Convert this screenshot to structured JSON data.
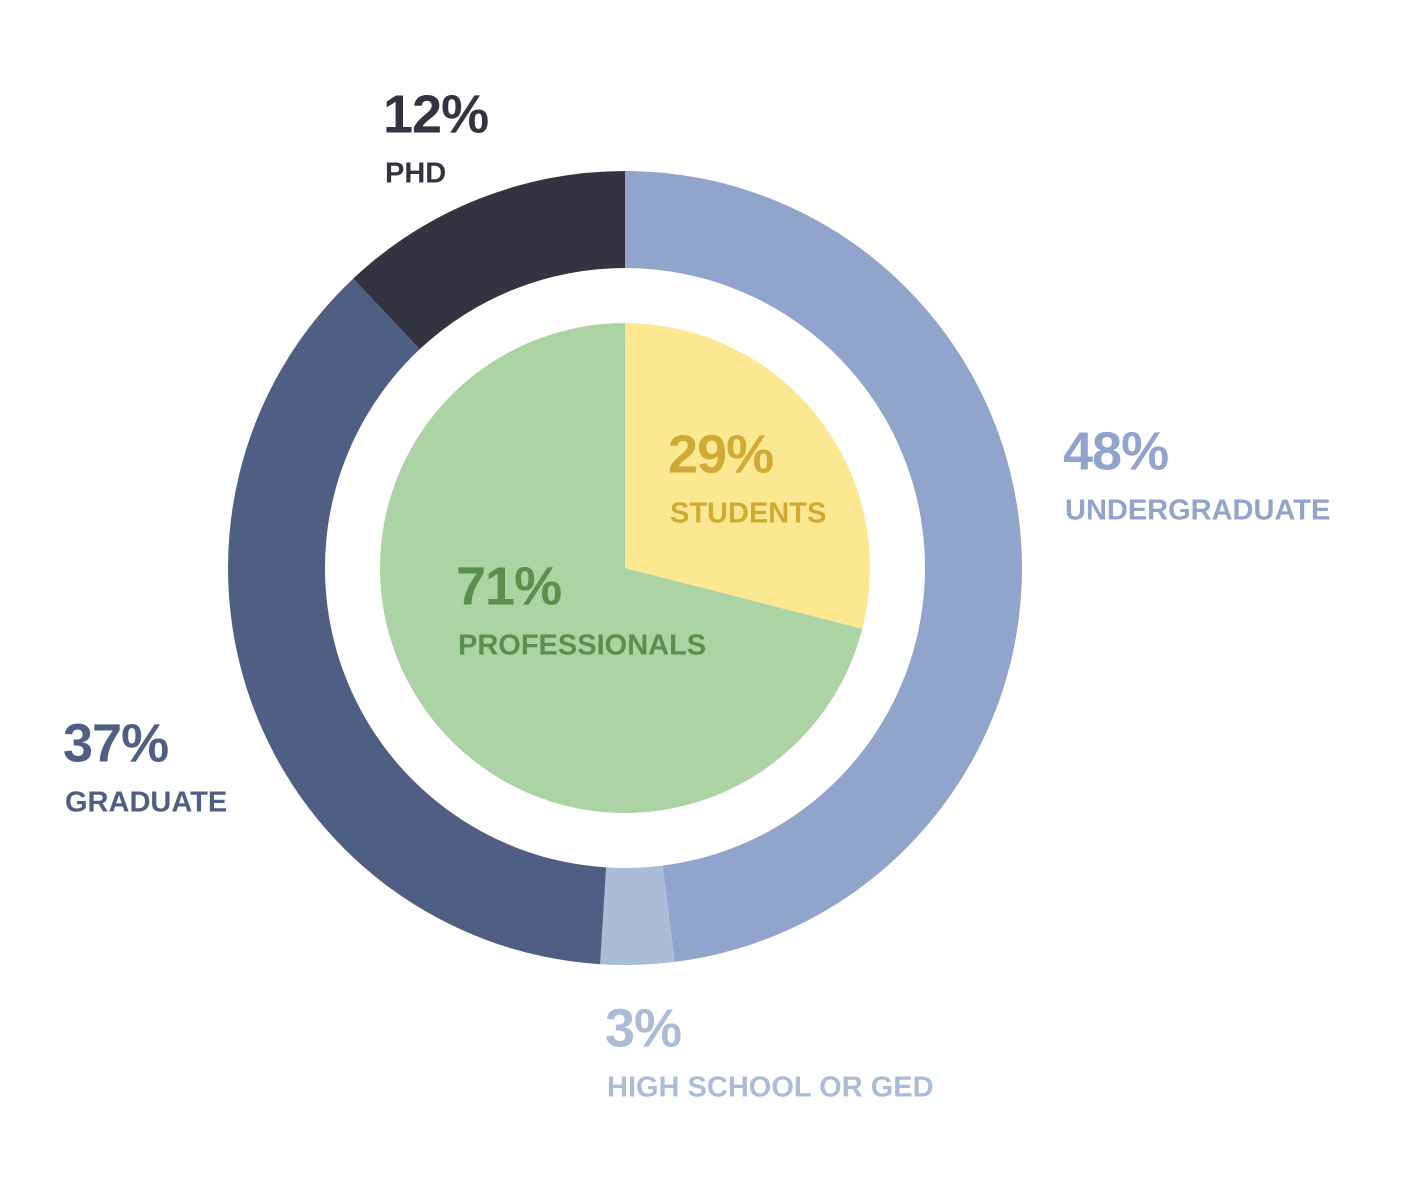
{
  "chart_data": [
    {
      "type": "donut",
      "categories": [
        "UNDERGRADUATE",
        "HIGH SCHOOL OR GED",
        "GRADUATE",
        "PHD"
      ],
      "values": [
        48,
        3,
        37,
        12
      ],
      "value_labels": [
        "48%",
        "3%",
        "37%",
        "12%"
      ],
      "colors": [
        "#91a4cb",
        "#abbdd6",
        "#4f5f83",
        "#343341"
      ],
      "label_colors": [
        "#91a4cb",
        "#abbdd6",
        "#4f5f83",
        "#343341"
      ]
    },
    {
      "type": "pie",
      "categories": [
        "STUDENTS",
        "PROFESSIONALS"
      ],
      "values": [
        29,
        71
      ],
      "value_labels": [
        "29%",
        "71%"
      ],
      "colors": [
        "#fde892",
        "#acd3a4"
      ],
      "label_colors": [
        "#d1aa33",
        "#5a8f4d"
      ]
    }
  ]
}
